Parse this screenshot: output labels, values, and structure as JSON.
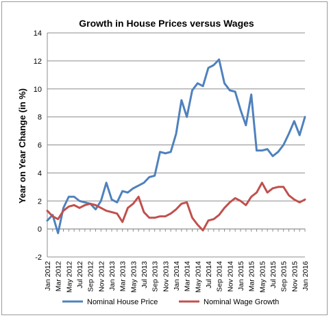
{
  "chart_data": {
    "type": "line",
    "title": "Growth in House Prices versus Wages",
    "xlabel": "",
    "ylabel": "Year on Year Change (in %)",
    "ylim": [
      -2,
      14
    ],
    "yticks": [
      "-2",
      "0",
      "2",
      "4",
      "6",
      "8",
      "10",
      "12",
      "14"
    ],
    "grid": true,
    "legend_position": "bottom",
    "x": [
      "Jan 2012",
      "Feb 2012",
      "Mar 2012",
      "Apr 2012",
      "May 2012",
      "Jun 2012",
      "Jul 2012",
      "Aug 2012",
      "Sep 2012",
      "Oct 2012",
      "Nov 2012",
      "Dec 2012",
      "Jan 2013",
      "Feb 2013",
      "Mar 2013",
      "Apr 2013",
      "May 2013",
      "Jun 2013",
      "Jul 2013",
      "Aug 2013",
      "Sep 2013",
      "Oct 2013",
      "Nov 2013",
      "Dec 2013",
      "Jan 2014",
      "Feb 2014",
      "Mar 2014",
      "Apr 2014",
      "May 2014",
      "Jun 2014",
      "Jul 2014",
      "Aug 2014",
      "Sep 2014",
      "Oct 2014",
      "Nov 2014",
      "Dec 2014",
      "Jan 2015",
      "Feb 2015",
      "Mar 2015",
      "Apr 2015",
      "May 2015",
      "Jun 2015",
      "Jul 2015",
      "Aug 2015",
      "Sep 2015",
      "Oct 2015",
      "Nov 2015",
      "Dec 2015",
      "Jan 2016"
    ],
    "xtick_labels": [
      "Jan 2012",
      "Mar 2012",
      "May 2012",
      "Jul 2012",
      "Sep 2012",
      "Nov 2012",
      "Jan 2013",
      "Mar 2013",
      "May 2013",
      "Jul 2013",
      "Sep 2013",
      "Nov 2013",
      "Jan 2014",
      "Mar 2014",
      "May 2014",
      "Jul 2014",
      "Sep 2014",
      "Nov 2014",
      "Jan 2015",
      "Mar 2015",
      "May 2015",
      "Jul 2015",
      "Sep 2015",
      "Nov 2015",
      "Jan 2016"
    ],
    "series": [
      {
        "name": "Nominal House Price",
        "color": "#4f81bd",
        "values": [
          0.6,
          1.0,
          -0.3,
          1.5,
          2.3,
          2.3,
          2.0,
          1.9,
          1.8,
          1.4,
          2.0,
          3.3,
          2.1,
          1.9,
          2.7,
          2.6,
          2.9,
          3.1,
          3.3,
          3.7,
          3.8,
          5.5,
          5.4,
          5.5,
          6.8,
          9.2,
          8.0,
          9.9,
          10.4,
          10.2,
          11.5,
          11.7,
          12.1,
          10.4,
          9.9,
          9.8,
          8.5,
          7.4,
          9.6,
          5.6,
          5.6,
          5.7,
          5.2,
          5.5,
          6.0,
          6.8,
          7.7,
          6.7,
          8.0
        ]
      },
      {
        "name": "Nominal Wage Growth",
        "color": "#c0504d",
        "values": [
          1.3,
          0.9,
          0.7,
          1.3,
          1.6,
          1.7,
          1.5,
          1.7,
          1.8,
          1.7,
          1.5,
          1.3,
          1.2,
          1.1,
          0.5,
          1.5,
          1.8,
          2.3,
          1.2,
          0.8,
          0.8,
          0.9,
          0.9,
          1.1,
          1.4,
          1.8,
          1.9,
          0.8,
          0.3,
          -0.1,
          0.6,
          0.7,
          1.0,
          1.5,
          1.9,
          2.2,
          2.0,
          1.7,
          2.3,
          2.6,
          3.3,
          2.6,
          2.9,
          3.0,
          3.0,
          2.4,
          2.1,
          1.9,
          2.1
        ]
      }
    ]
  }
}
